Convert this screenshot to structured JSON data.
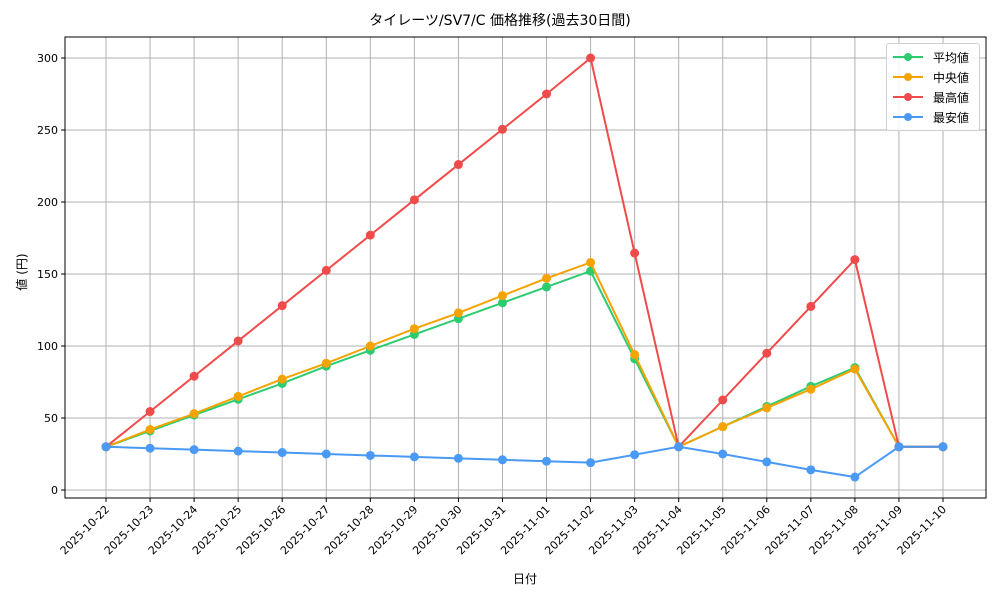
{
  "chart_data": {
    "type": "line",
    "title": "タイレーツ/SV7/C 価格推移(過去30日間)",
    "xlabel": "日付",
    "ylabel": "値 (円)",
    "ylim": [
      -8,
      315
    ],
    "yticks": [
      0,
      50,
      100,
      150,
      200,
      250,
      300
    ],
    "grid": true,
    "legend_position": "upper right",
    "categories": [
      "2025-10-22",
      "2025-10-23",
      "2025-10-24",
      "2025-10-25",
      "2025-10-26",
      "2025-10-27",
      "2025-10-28",
      "2025-10-29",
      "2025-10-30",
      "2025-10-31",
      "2025-11-01",
      "2025-11-02",
      "2025-11-03",
      "2025-11-04",
      "2025-11-05",
      "2025-11-06",
      "2025-11-07",
      "2025-11-08",
      "2025-11-09",
      "2025-11-10"
    ],
    "series": [
      {
        "name": "平均値",
        "color": "#2ecc71",
        "values": [
          30,
          41,
          52,
          63,
          74,
          86,
          97,
          108,
          119,
          130,
          141,
          152,
          91,
          30,
          44,
          58,
          72,
          85,
          30,
          30
        ]
      },
      {
        "name": "中央値",
        "color": "#f5a300",
        "values": [
          30,
          42,
          53,
          65,
          77,
          88,
          100,
          112,
          123,
          135,
          147,
          158,
          94,
          30,
          44,
          57,
          70,
          84,
          30,
          30
        ]
      },
      {
        "name": "最高値",
        "color": "#f04b4b",
        "values": [
          30,
          54.5,
          79,
          103.5,
          128,
          152.5,
          177,
          201.5,
          226,
          250.5,
          275,
          300,
          164.5,
          30,
          62.5,
          95,
          127.5,
          160,
          30,
          30
        ]
      },
      {
        "name": "最安値",
        "color": "#4a9af5",
        "values": [
          30,
          29,
          28,
          27,
          26,
          25,
          24,
          23,
          22,
          21,
          20,
          19,
          24.5,
          30,
          25,
          19.5,
          14,
          9,
          30,
          30
        ]
      }
    ]
  }
}
